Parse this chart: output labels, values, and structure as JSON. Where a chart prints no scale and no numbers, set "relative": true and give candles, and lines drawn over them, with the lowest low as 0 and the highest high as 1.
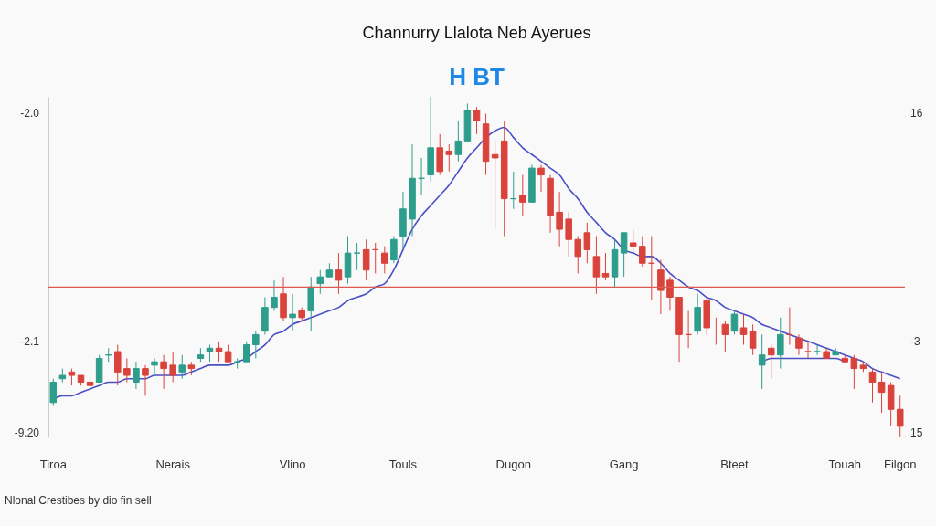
{
  "chart_data": {
    "type": "candlestick",
    "title": "Channurry Llalota Neb Ayerues",
    "subtitle": "H BT",
    "relative": true,
    "categories": [
      "Tiroa",
      null,
      null,
      null,
      null,
      null,
      null,
      null,
      null,
      null,
      null,
      null,
      null,
      "Nerais",
      null,
      null,
      null,
      null,
      null,
      null,
      null,
      null,
      null,
      null,
      null,
      null,
      "Vlino",
      null,
      null,
      null,
      null,
      null,
      null,
      null,
      null,
      null,
      null,
      null,
      "Touls",
      null,
      null,
      null,
      null,
      null,
      null,
      null,
      null,
      null,
      null,
      null,
      "Dugon",
      null,
      null,
      null,
      null,
      null,
      null,
      null,
      null,
      null,
      null,
      null,
      "Gang",
      null,
      null,
      null,
      null,
      null,
      null,
      null,
      null,
      null,
      null,
      null,
      "Bteet",
      null,
      null,
      null,
      null,
      null,
      null,
      null,
      null,
      null,
      null,
      null,
      "Touah",
      null,
      null,
      null,
      null,
      null,
      "Filgon"
    ],
    "ohlc": [
      [
        0.1,
        0.17,
        0.09,
        0.16
      ],
      [
        0.17,
        0.2,
        0.16,
        0.18
      ],
      [
        0.19,
        0.2,
        0.15,
        0.18
      ],
      [
        0.18,
        0.18,
        0.15,
        0.16
      ],
      [
        0.16,
        0.18,
        0.15,
        0.15
      ],
      [
        0.16,
        0.24,
        0.16,
        0.23
      ],
      [
        0.24,
        0.26,
        0.22,
        0.24
      ],
      [
        0.25,
        0.27,
        0.15,
        0.19
      ],
      [
        0.2,
        0.23,
        0.16,
        0.18
      ],
      [
        0.16,
        0.22,
        0.14,
        0.2
      ],
      [
        0.2,
        0.21,
        0.12,
        0.18
      ],
      [
        0.21,
        0.23,
        0.18,
        0.22
      ],
      [
        0.22,
        0.24,
        0.14,
        0.2
      ],
      [
        0.21,
        0.25,
        0.16,
        0.18
      ],
      [
        0.19,
        0.24,
        0.17,
        0.21
      ],
      [
        0.21,
        0.22,
        0.18,
        0.2
      ],
      [
        0.23,
        0.26,
        0.22,
        0.24
      ],
      [
        0.25,
        0.27,
        0.22,
        0.26
      ],
      [
        0.26,
        0.28,
        0.22,
        0.25
      ],
      [
        0.25,
        0.27,
        0.22,
        0.22
      ],
      [
        0.22,
        0.23,
        0.2,
        0.22
      ],
      [
        0.22,
        0.28,
        0.22,
        0.27
      ],
      [
        0.27,
        0.31,
        0.23,
        0.3
      ],
      [
        0.31,
        0.41,
        0.3,
        0.38
      ],
      [
        0.38,
        0.46,
        0.37,
        0.41
      ],
      [
        0.42,
        0.47,
        0.34,
        0.35
      ],
      [
        0.35,
        0.42,
        0.31,
        0.36
      ],
      [
        0.37,
        0.38,
        0.34,
        0.35
      ],
      [
        0.37,
        0.47,
        0.31,
        0.44
      ],
      [
        0.45,
        0.49,
        0.42,
        0.47
      ],
      [
        0.47,
        0.51,
        0.47,
        0.49
      ],
      [
        0.49,
        0.54,
        0.42,
        0.46
      ],
      [
        0.47,
        0.59,
        0.45,
        0.54
      ],
      [
        0.54,
        0.57,
        0.49,
        0.54
      ],
      [
        0.55,
        0.58,
        0.46,
        0.49
      ],
      [
        0.55,
        0.57,
        0.48,
        0.55
      ],
      [
        0.54,
        0.56,
        0.48,
        0.51
      ],
      [
        0.52,
        0.59,
        0.51,
        0.58
      ],
      [
        0.59,
        0.72,
        0.55,
        0.67
      ],
      [
        0.64,
        0.86,
        0.59,
        0.76
      ],
      [
        0.76,
        0.82,
        0.71,
        0.76
      ],
      [
        0.77,
        1,
        0.75,
        0.85
      ],
      [
        0.85,
        0.89,
        0.77,
        0.78
      ],
      [
        0.84,
        0.86,
        0.78,
        0.83
      ],
      [
        0.83,
        0.93,
        0.81,
        0.87
      ],
      [
        0.87,
        0.98,
        0.87,
        0.96
      ],
      [
        0.96,
        0.97,
        0.89,
        0.93
      ],
      [
        0.92,
        0.95,
        0.77,
        0.81
      ],
      [
        0.83,
        0.87,
        0.61,
        0.82
      ],
      [
        0.87,
        0.93,
        0.59,
        0.7
      ],
      [
        0.7,
        0.78,
        0.67,
        0.7
      ],
      [
        0.71,
        0.77,
        0.65,
        0.69
      ],
      [
        0.69,
        0.8,
        0.69,
        0.79
      ],
      [
        0.79,
        0.8,
        0.72,
        0.77
      ],
      [
        0.76,
        0.77,
        0.6,
        0.65
      ],
      [
        0.66,
        0.72,
        0.56,
        0.61
      ],
      [
        0.64,
        0.66,
        0.53,
        0.58
      ],
      [
        0.58,
        0.59,
        0.48,
        0.53
      ],
      [
        0.6,
        0.63,
        0.51,
        0.55
      ],
      [
        0.53,
        0.59,
        0.42,
        0.47
      ],
      [
        0.48,
        0.54,
        0.46,
        0.47
      ],
      [
        0.47,
        0.58,
        0.44,
        0.55
      ],
      [
        0.54,
        0.6,
        0.47,
        0.6
      ],
      [
        0.57,
        0.61,
        0.54,
        0.56
      ],
      [
        0.56,
        0.59,
        0.5,
        0.51
      ],
      [
        0.51,
        0.59,
        0.4,
        0.51
      ],
      [
        0.49,
        0.52,
        0.36,
        0.43
      ],
      [
        0.46,
        0.47,
        0.37,
        0.41
      ],
      [
        0.41,
        0.41,
        0.22,
        0.3
      ],
      [
        0.3,
        0.37,
        0.26,
        0.3
      ],
      [
        0.31,
        0.42,
        0.3,
        0.38
      ],
      [
        0.4,
        0.41,
        0.3,
        0.32
      ],
      [
        0.34,
        0.35,
        0.27,
        0.34
      ],
      [
        0.33,
        0.34,
        0.25,
        0.3
      ],
      [
        0.31,
        0.37,
        0.3,
        0.36
      ],
      [
        0.32,
        0.36,
        0.27,
        0.3
      ],
      [
        0.31,
        0.33,
        0.24,
        0.26
      ],
      [
        0.21,
        0.3,
        0.14,
        0.24
      ],
      [
        0.26,
        0.27,
        0.17,
        0.24
      ],
      [
        0.24,
        0.35,
        0.2,
        0.3
      ],
      [
        0.3,
        0.38,
        0.27,
        0.3
      ],
      [
        0.29,
        0.3,
        0.24,
        0.26
      ],
      [
        0.25,
        0.28,
        0.23,
        0.25
      ],
      [
        0.25,
        0.27,
        0.24,
        0.25
      ],
      [
        0.25,
        0.26,
        0.23,
        0.23
      ],
      [
        0.24,
        0.26,
        0.24,
        0.25
      ],
      [
        0.23,
        0.24,
        0.22,
        0.22
      ],
      [
        0.23,
        0.24,
        0.14,
        0.2
      ],
      [
        0.21,
        0.22,
        0.19,
        0.2
      ],
      [
        0.19,
        0.2,
        0.1,
        0.16
      ],
      [
        0.16,
        0.19,
        0.07,
        0.13
      ],
      [
        0.15,
        0.16,
        0.03,
        0.08
      ],
      [
        0.08,
        0.12,
        0,
        0.03
      ]
    ],
    "colors": [
      "#2e9d8b",
      "#2e9d8b",
      "#d9433b",
      "#d9433b",
      "#d9433b",
      "#2e9d8b",
      "#2e9d8b",
      "#d9433b",
      "#d9433b",
      "#2e9d8b",
      "#d9433b",
      "#2e9d8b",
      "#d9433b",
      "#d9433b",
      "#2e9d8b",
      "#d9433b",
      "#2e9d8b",
      "#2e9d8b",
      "#d9433b",
      "#d9433b",
      "#2e9d8b",
      "#2e9d8b",
      "#2e9d8b",
      "#2e9d8b",
      "#2e9d8b",
      "#d9433b",
      "#2e9d8b",
      "#d9433b",
      "#2e9d8b",
      "#2e9d8b",
      "#2e9d8b",
      "#d9433b",
      "#2e9d8b",
      "#2e9d8b",
      "#d9433b",
      "#d9433b",
      "#d9433b",
      "#2e9d8b",
      "#2e9d8b",
      "#2e9d8b",
      "#2e9d8b",
      "#2e9d8b",
      "#d9433b",
      "#d9433b",
      "#2e9d8b",
      "#2e9d8b",
      "#d9433b",
      "#d9433b",
      "#d9433b",
      "#d9433b",
      "#2e9d8b",
      "#d9433b",
      "#2e9d8b",
      "#d9433b",
      "#d9433b",
      "#d9433b",
      "#d9433b",
      "#d9433b",
      "#d9433b",
      "#d9433b",
      "#d9433b",
      "#2e9d8b",
      "#2e9d8b",
      "#d9433b",
      "#d9433b",
      "#d9433b",
      "#d9433b",
      "#d9433b",
      "#d9433b",
      "#d9433b",
      "#2e9d8b",
      "#d9433b",
      "#d9433b",
      "#d9433b",
      "#2e9d8b",
      "#d9433b",
      "#d9433b",
      "#2e9d8b",
      "#d9433b",
      "#2e9d8b",
      "#d9433b",
      "#d9433b",
      "#d9433b",
      "#2e9d8b",
      "#d9433b",
      "#2e9d8b",
      "#d9433b",
      "#d9433b",
      "#d9433b",
      "#d9433b",
      "#d9433b",
      "#d9433b",
      "#d9433b"
    ],
    "series": [
      {
        "type": "line",
        "color": "#4a4fc4",
        "values": [
          0.11,
          0.12,
          0.12,
          0.13,
          0.14,
          0.15,
          0.16,
          0.16,
          0.17,
          0.17,
          0.17,
          0.18,
          0.18,
          0.18,
          0.18,
          0.19,
          0.2,
          0.21,
          0.21,
          0.21,
          0.22,
          0.23,
          0.25,
          0.27,
          0.3,
          0.31,
          0.33,
          0.34,
          0.35,
          0.36,
          0.37,
          0.38,
          0.4,
          0.41,
          0.42,
          0.44,
          0.45,
          0.49,
          0.55,
          0.61,
          0.65,
          0.68,
          0.71,
          0.74,
          0.78,
          0.82,
          0.85,
          0.88,
          0.9,
          0.91,
          0.88,
          0.85,
          0.83,
          0.81,
          0.79,
          0.77,
          0.73,
          0.7,
          0.66,
          0.63,
          0.6,
          0.58,
          0.55,
          0.54,
          0.53,
          0.53,
          0.51,
          0.48,
          0.46,
          0.44,
          0.43,
          0.41,
          0.4,
          0.38,
          0.37,
          0.36,
          0.35,
          0.33,
          0.32,
          0.31,
          0.3,
          0.29,
          0.28,
          0.27,
          0.26,
          0.25,
          0.24,
          0.23,
          0.22,
          0.2,
          0.19,
          0.18,
          0.17
        ]
      },
      {
        "type": "line",
        "color": "#4a4fc4",
        "values": [
          null,
          null,
          null,
          null,
          null,
          null,
          null,
          null,
          null,
          null,
          null,
          null,
          null,
          null,
          null,
          null,
          null,
          null,
          null,
          null,
          null,
          null,
          null,
          null,
          null,
          null,
          null,
          null,
          null,
          null,
          null,
          null,
          null,
          null,
          null,
          null,
          null,
          null,
          null,
          null,
          null,
          null,
          null,
          null,
          null,
          null,
          null,
          null,
          null,
          null,
          null,
          null,
          null,
          null,
          null,
          null,
          null,
          null,
          null,
          null,
          null,
          null,
          null,
          null,
          null,
          null,
          null,
          null,
          null,
          null,
          null,
          null,
          null,
          null,
          null,
          null,
          null,
          0.22,
          0.23,
          0.23,
          0.23,
          0.23,
          0.23,
          0.23,
          0.23,
          0.23,
          0.22,
          null,
          null,
          null,
          null,
          null,
          null
        ]
      }
    ],
    "ref_lines": [
      {
        "axis": "y",
        "value": 0.44,
        "color": "#e0594f"
      }
    ],
    "annotations": [
      "-2.0",
      "-2.1",
      "-9.20",
      "16",
      "-3",
      "15",
      "Nlonal Crestibes by dio fin sell"
    ]
  }
}
